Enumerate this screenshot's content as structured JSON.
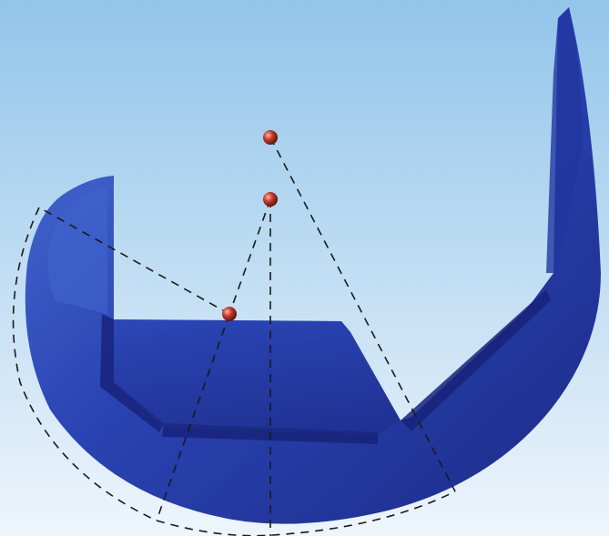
{
  "figure": {
    "subject": "femoral-component-implant",
    "colors": {
      "background_top": "#92c5ea",
      "background_bottom": "#eef5fc",
      "implant_dark": "#1c2a86",
      "implant_mid": "#2a44b4",
      "implant_light": "#4f75d8",
      "center_marker": "#c0392b",
      "guide_line": "#1a1a1a"
    },
    "markers": [
      {
        "name": "center-point-upper"
      },
      {
        "name": "center-point-middle"
      },
      {
        "name": "center-point-lower"
      }
    ],
    "line_style": "dashed"
  }
}
